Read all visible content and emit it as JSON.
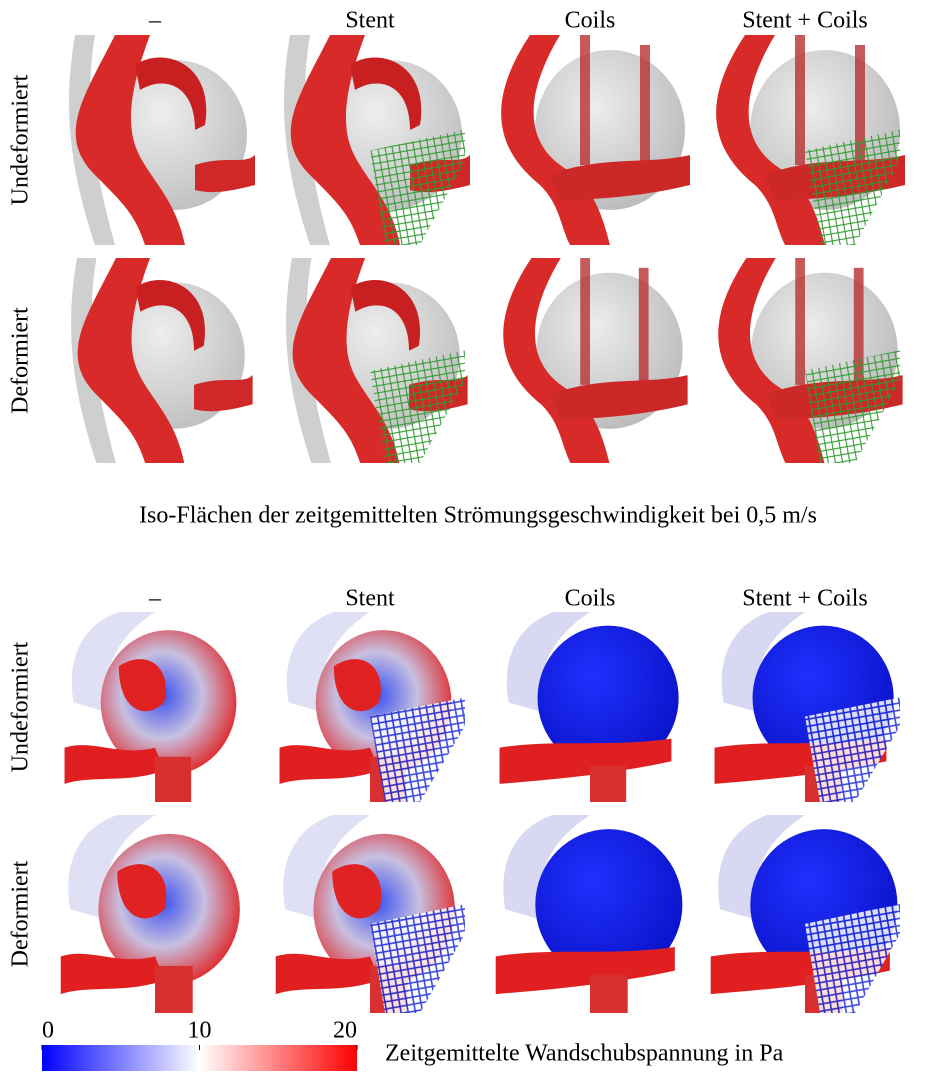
{
  "top": {
    "columns": [
      "–",
      "Stent",
      "Coils",
      "Stent + Coils"
    ],
    "rows": [
      "Undeformiert",
      "Deformiert"
    ],
    "caption": "Iso-Flächen der zeitgemittelten Strömungsgeschwindigkeit bei 0,5 m/s"
  },
  "bottom": {
    "columns": [
      "–",
      "Stent",
      "Coils",
      "Stent + Coils"
    ],
    "rows": [
      "Undeformiert",
      "Deformiert"
    ],
    "caption": "Zeitgemittelte Wandschubspannung in Pa"
  },
  "colorbar": {
    "lim": [
      0,
      20
    ],
    "ticks": [
      0,
      10,
      20
    ]
  }
}
